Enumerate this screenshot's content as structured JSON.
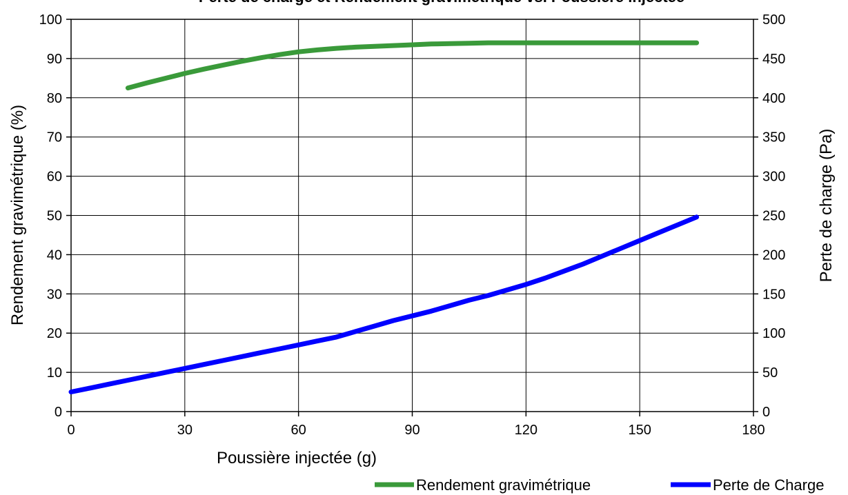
{
  "chart_data": {
    "type": "line",
    "title": "Perte de charge et Rendement gravimétrique vs. Poussière injectée",
    "xlabel": "Poussière injectée (g)",
    "ylabel": "Rendement gravimétrique (%)",
    "y2label": "Perte de charge (Pa)",
    "xlim": [
      0,
      180
    ],
    "ylim": [
      0,
      100
    ],
    "y2lim": [
      0,
      500
    ],
    "x_ticks": [
      "0",
      "30",
      "60",
      "90",
      "120",
      "150",
      "180"
    ],
    "y_ticks": [
      "0",
      "10",
      "20",
      "30",
      "40",
      "50",
      "60",
      "70",
      "80",
      "90",
      "100"
    ],
    "y2_ticks": [
      "0",
      "50",
      "100",
      "150",
      "200",
      "250",
      "300",
      "350",
      "400",
      "450",
      "500"
    ],
    "grid": true,
    "legend_position": "bottom-right",
    "series": [
      {
        "name": "Rendement gravimétrique",
        "axis": "left",
        "color": "#3a9a3a",
        "x": [
          15,
          20,
          25,
          30,
          35,
          40,
          45,
          50,
          55,
          60,
          65,
          70,
          75,
          80,
          85,
          90,
          95,
          100,
          105,
          110,
          115,
          120,
          125,
          130,
          135,
          140,
          145,
          150,
          155,
          160,
          165
        ],
        "y": [
          82.5,
          83.8,
          85.0,
          86.2,
          87.3,
          88.3,
          89.3,
          90.2,
          91.0,
          91.7,
          92.2,
          92.6,
          92.9,
          93.1,
          93.3,
          93.5,
          93.7,
          93.8,
          93.9,
          94.0,
          94.0,
          94.0,
          94.0,
          94.0,
          94.0,
          94.0,
          94.0,
          94.0,
          94.0,
          94.0,
          94.0
        ]
      },
      {
        "name": "Perte de Charge",
        "axis": "right",
        "color": "#0000ff",
        "x": [
          0,
          5,
          10,
          15,
          20,
          25,
          30,
          35,
          40,
          45,
          50,
          55,
          60,
          65,
          70,
          75,
          80,
          85,
          90,
          95,
          100,
          105,
          110,
          115,
          120,
          125,
          130,
          135,
          140,
          145,
          150,
          155,
          160,
          165
        ],
        "y": [
          25,
          30,
          35,
          40,
          45,
          50,
          55,
          60,
          65,
          70,
          75,
          80,
          85,
          90,
          95,
          102,
          109,
          116,
          122,
          128,
          135,
          142,
          148,
          155,
          162,
          170,
          179,
          188,
          198,
          208,
          218,
          228,
          238,
          248
        ]
      }
    ]
  }
}
